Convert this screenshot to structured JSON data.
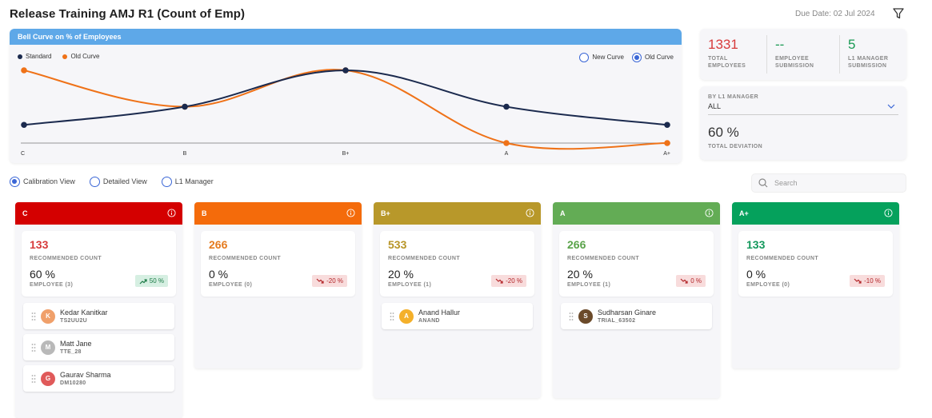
{
  "page": {
    "title": "Release Training AMJ R1 (Count of Emp)",
    "due_date": "Due Date: 02 Jul 2024"
  },
  "chart_panel": {
    "header": "Bell Curve on % of Employees",
    "legend": [
      "Standard",
      "Old Curve"
    ],
    "toggle": [
      {
        "label": "New Curve",
        "selected": false
      },
      {
        "label": "Old Curve",
        "selected": true
      }
    ]
  },
  "chart_data": {
    "type": "line",
    "categories": [
      "C",
      "B",
      "B+",
      "A",
      "A+"
    ],
    "series": [
      {
        "name": "Standard",
        "color": "#1b2a4e",
        "values": [
          10,
          20,
          40,
          20,
          10
        ]
      },
      {
        "name": "Old Curve",
        "color": "#ef7218",
        "values": [
          40,
          20,
          40,
          0,
          0
        ]
      }
    ],
    "ylim": [
      0,
      40
    ],
    "legend_position": "top-left",
    "grid": false
  },
  "stats": [
    {
      "value": "1331",
      "label": "TOTAL EMPLOYEES",
      "color": "#d73b3b"
    },
    {
      "value": "--",
      "label": "EMPLOYEE SUBMISSION",
      "color": "#1a9a54"
    },
    {
      "value": "5",
      "label": "L1 MANAGER SUBMISSION",
      "color": "#1a9a54"
    }
  ],
  "manager": {
    "label": "BY L1 MANAGER",
    "selected": "ALL",
    "deviation": "60 %",
    "deviation_label": "TOTAL DEVIATION"
  },
  "views": [
    {
      "label": "Calibration View",
      "selected": true
    },
    {
      "label": "Detailed View",
      "selected": false
    },
    {
      "label": "L1 Manager",
      "selected": false
    }
  ],
  "search": {
    "placeholder": "Search"
  },
  "columns": [
    {
      "grade": "C",
      "color": "#d40000",
      "count": "133",
      "count_color": "#d73b3b",
      "count_label": "RECOMMENDED COUNT",
      "pct": "60 %",
      "emp": "EMPLOYEE (3)",
      "badge": "50 %",
      "trend": "up",
      "employees": [
        {
          "name": "Kedar Kanitkar",
          "id": "TS2UU2U",
          "initial": "K",
          "avatar_color": "#f0a06a"
        },
        {
          "name": "Matt Jane",
          "id": "TTE_28",
          "initial": "M",
          "avatar_color": "#b9b9b9"
        },
        {
          "name": "Gaurav Sharma",
          "id": "DM10280",
          "initial": "G",
          "avatar_color": "#e05a5a"
        }
      ]
    },
    {
      "grade": "B",
      "color": "#f46b0b",
      "count": "266",
      "count_color": "#e57b1f",
      "count_label": "RECOMMENDED COUNT",
      "pct": "0 %",
      "emp": "EMPLOYEE (0)",
      "badge": "-20 %",
      "trend": "down",
      "employees": []
    },
    {
      "grade": "B+",
      "color": "#b8982a",
      "count": "533",
      "count_color": "#b89527",
      "count_label": "RECOMMENDED COUNT",
      "pct": "20 %",
      "emp": "EMPLOYEE (1)",
      "badge": "-20 %",
      "trend": "down",
      "employees": [
        {
          "name": "Anand Hallur",
          "id": "ANAND",
          "initial": "A",
          "avatar_color": "#f4b02a"
        }
      ]
    },
    {
      "grade": "A",
      "color": "#63ac55",
      "count": "266",
      "count_color": "#5aa34a",
      "count_label": "RECOMMENDED COUNT",
      "pct": "20 %",
      "emp": "EMPLOYEE (1)",
      "badge": "0 %",
      "trend": "down",
      "employees": [
        {
          "name": "Sudharsan Ginare",
          "id": "TRIAL_63502",
          "initial": "S",
          "avatar_color": "#6b4a2a"
        }
      ]
    },
    {
      "grade": "A+",
      "color": "#05a15c",
      "count": "133",
      "count_color": "#14995d",
      "count_label": "RECOMMENDED COUNT",
      "pct": "0 %",
      "emp": "EMPLOYEE (0)",
      "badge": "-10 %",
      "trend": "down",
      "employees": []
    }
  ]
}
